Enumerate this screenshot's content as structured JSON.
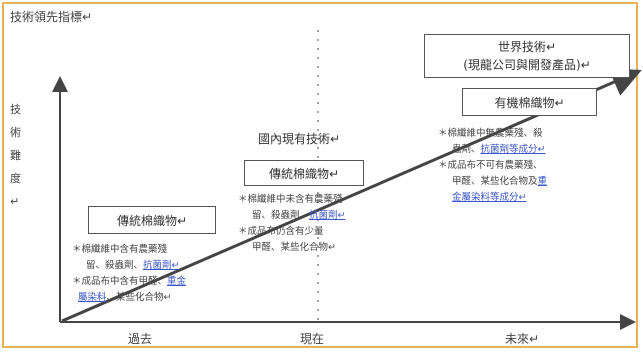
{
  "title": "技術領先指標↵",
  "y_axis_label": "技術難度↵",
  "x_ticks": {
    "past": "過去",
    "now": "現在",
    "future": "未來↵"
  },
  "mid_label": "國內現有技術↵",
  "world": {
    "line1": "世界技術↵",
    "line2": "(現龍公司與開發產品)↵"
  },
  "boxes": {
    "trad_low": "傳統棉織物↵",
    "trad_mid": "傳統棉織物↵",
    "organic": "有機棉織物↵"
  },
  "desc_low": {
    "l1": "＊棉纖維中含有農藥殘",
    "l2a": "留、殺蟲劑、",
    "l2b": "抗菌劑↵",
    "l3a": "＊成品布中含有甲醛、",
    "l3b": "重金",
    "l4a": "屬染料",
    "l4b": "、某些化合物↵"
  },
  "desc_mid": {
    "l1": "＊棉纖維中未含有農藥殘",
    "l2a": "留、殺蟲劑、",
    "l2b": "抗菌劑↵",
    "l3a": "＊成品布仍含有少量",
    "l4": "甲醛、某些化合物↵"
  },
  "desc_org": {
    "l1": "＊棉纖維中無農藥殘、殺",
    "l2a": "蟲劑、",
    "l2b": "抗菌劑等成分↵",
    "l3": "＊成品布不可有農藥殘、",
    "l4a": "甲醛、某些化合物及",
    "l4b": "重",
    "l5": "金屬染料等成分↵"
  },
  "colors": {
    "frame": "#e6b15c",
    "underline": "#3b57c9",
    "arrow": "#444444"
  }
}
